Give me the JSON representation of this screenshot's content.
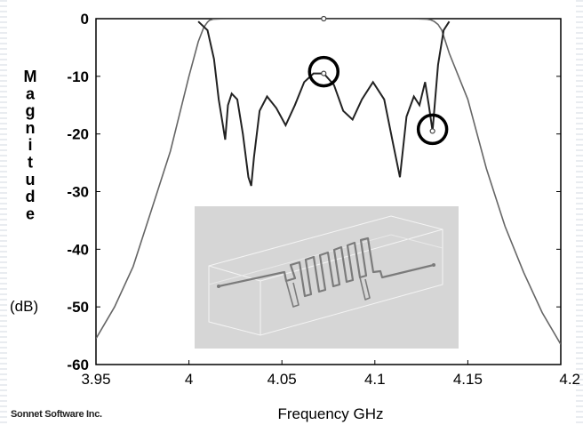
{
  "chart_data": {
    "type": "line",
    "title": "",
    "xlabel": "Frequency GHz",
    "ylabel": "Magnitude",
    "yunit": "(dB)",
    "xlim": [
      3.95,
      4.2
    ],
    "ylim": [
      -60,
      0
    ],
    "x_ticks": [
      "3.95",
      "4",
      "4.05",
      "4.1",
      "4.15",
      "4.2"
    ],
    "y_ticks": [
      "0",
      "-10",
      "-20",
      "-30",
      "-40",
      "-50",
      "-60"
    ],
    "grid": false,
    "legend": "none",
    "series": [
      {
        "color": "#666666",
        "x": [
          3.95,
          3.96,
          3.97,
          3.98,
          3.99,
          4.0,
          4.005,
          4.008,
          4.01,
          4.011,
          4.013,
          4.02,
          4.03,
          4.05,
          4.07,
          4.09,
          4.11,
          4.12,
          4.128,
          4.13,
          4.132,
          4.134,
          4.136,
          4.14,
          4.15,
          4.16,
          4.17,
          4.18,
          4.19,
          4.2
        ],
        "y": [
          -55.5,
          -50,
          -43,
          -33,
          -23,
          -10,
          -4,
          -1.5,
          -0.6,
          -0.3,
          -0.1,
          0,
          0,
          0,
          0,
          0,
          0,
          0,
          -0.1,
          -0.2,
          -0.5,
          -1,
          -2,
          -6,
          -14,
          -26,
          -36,
          -44,
          -51,
          -56.5
        ]
      },
      {
        "color": "#222222",
        "x": [
          4.005,
          4.01,
          4.0135,
          4.016,
          4.018,
          4.0195,
          4.021,
          4.023,
          4.026,
          4.029,
          4.032,
          4.0335,
          4.035,
          4.038,
          4.042,
          4.047,
          4.052,
          4.057,
          4.062,
          4.067,
          4.0725,
          4.078,
          4.083,
          4.088,
          4.093,
          4.099,
          4.105,
          4.11,
          4.1135,
          4.117,
          4.121,
          4.124,
          4.127,
          4.129,
          4.131,
          4.134,
          4.137,
          4.14
        ],
        "y": [
          -0.5,
          -2,
          -7,
          -14,
          -18,
          -21,
          -15,
          -13,
          -14,
          -20,
          -27.5,
          -29,
          -24,
          -16,
          -13.5,
          -15.5,
          -18.5,
          -15,
          -11,
          -9.5,
          -9.5,
          -11.5,
          -16,
          -17.5,
          -14,
          -11,
          -14,
          -22,
          -27.5,
          -17,
          -13.5,
          -15,
          -11,
          -15,
          -19.5,
          -8,
          -2,
          -0.5
        ]
      }
    ],
    "markers": [
      {
        "x": 4.0725,
        "y": 0
      },
      {
        "x": 4.0725,
        "y": -9.5
      },
      {
        "x": 4.131,
        "y": -19.5
      }
    ],
    "annotations": [
      {
        "type": "circle",
        "x": 4.0725,
        "y": -9.5
      },
      {
        "type": "circle",
        "x": 4.131,
        "y": -19.5
      }
    ],
    "inset": {
      "type": "image",
      "content": "filter-layout-3d",
      "colors": {
        "bg": "#d6d6d6",
        "trace": "#7a7a7a",
        "box": "#f2f2f2"
      }
    }
  },
  "footer": {
    "credit": "Sonnet Software Inc."
  },
  "colors": {
    "background": "#ffffff",
    "side_stripes": "#e6e9ee"
  }
}
